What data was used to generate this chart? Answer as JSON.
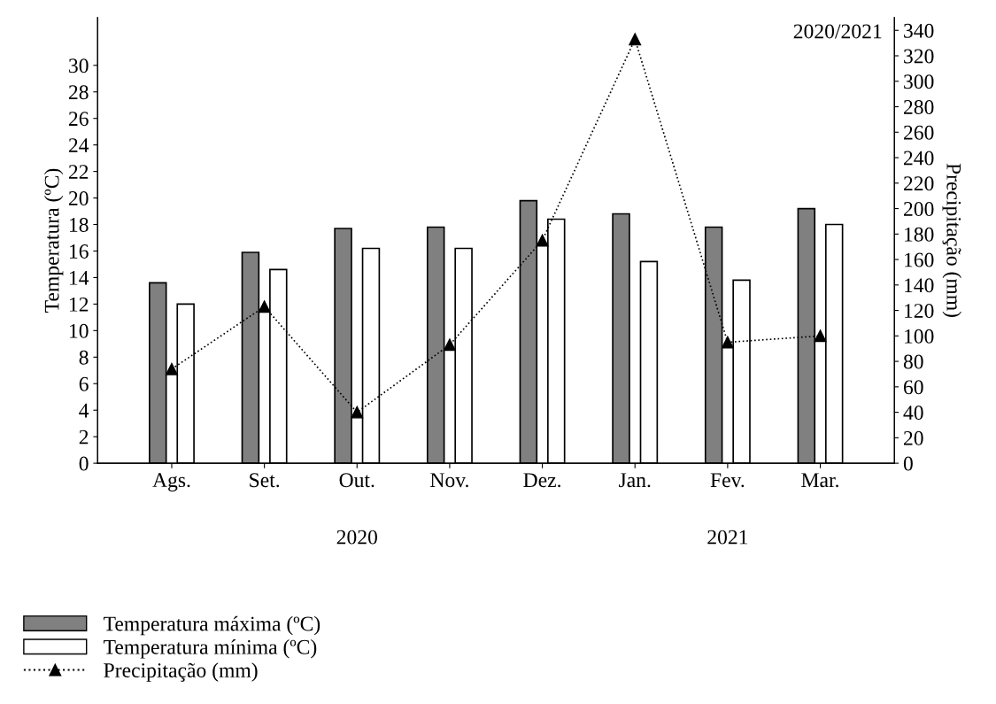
{
  "chart_data": {
    "type": "bar",
    "categories": [
      "Ags.",
      "Set.",
      "Out.",
      "Nov.",
      "Dez.",
      "Jan.",
      "Fev.",
      "Mar."
    ],
    "series": [
      {
        "name": "Temperatura máxima (ºC)",
        "color": "#808080",
        "values": [
          13.6,
          15.9,
          17.7,
          17.8,
          19.8,
          18.8,
          17.8,
          19.2
        ]
      },
      {
        "name": "Temperatura mínima (ºC)",
        "color": "#ffffff",
        "values": [
          12.0,
          14.6,
          16.2,
          16.2,
          18.4,
          15.2,
          13.8,
          18.0
        ]
      },
      {
        "name": "Precipitação (mm)",
        "type": "line",
        "axis": "y2",
        "color": "#000000",
        "marker": "triangle",
        "line_style": "dotted",
        "values": [
          74,
          123,
          40,
          93,
          175,
          333,
          95,
          100
        ]
      }
    ],
    "ylabel": "Temperatura (ºC)",
    "y2label": "Precipitação (mm)",
    "ylim": [
      0,
      33.6
    ],
    "yticks": [
      0,
      2,
      4,
      6,
      8,
      10,
      12,
      14,
      16,
      18,
      20,
      22,
      24,
      26,
      28,
      30
    ],
    "y2lim": [
      0,
      350
    ],
    "y2ticks": [
      0,
      20,
      40,
      60,
      80,
      100,
      120,
      140,
      160,
      180,
      200,
      220,
      240,
      260,
      280,
      300,
      320,
      340
    ],
    "annotations": [
      "2020/2021",
      "2020",
      "2021"
    ],
    "legend": "bottom left",
    "grid": false
  }
}
